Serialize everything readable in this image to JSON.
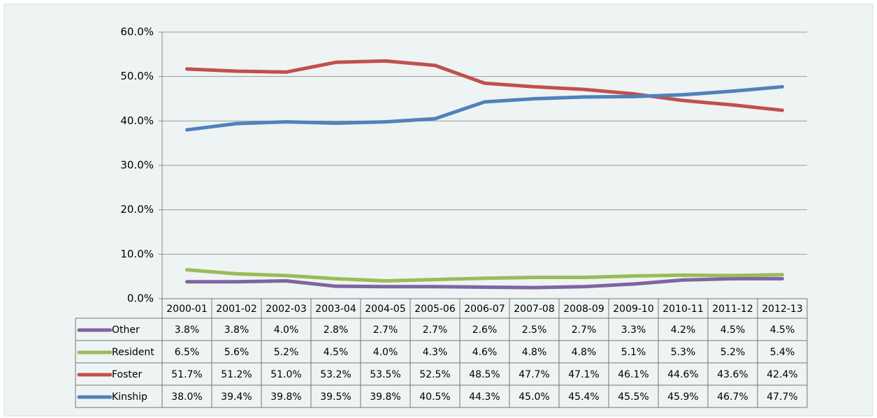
{
  "chart_data": {
    "type": "line",
    "categories": [
      "2000-01",
      "2001-02",
      "2002-03",
      "2003-04",
      "2004-05",
      "2005-06",
      "2006-07",
      "2007-08",
      "2008-09",
      "2009-10",
      "2010-11",
      "2011-12",
      "2012-13"
    ],
    "series": [
      {
        "name": "Other",
        "color": "#8064a2",
        "values": [
          3.8,
          3.8,
          4.0,
          2.8,
          2.7,
          2.7,
          2.6,
          2.5,
          2.7,
          3.3,
          4.2,
          4.5,
          4.5
        ],
        "value_labels": [
          "3.8%",
          "3.8%",
          "4.0%",
          "2.8%",
          "2.7%",
          "2.7%",
          "2.6%",
          "2.5%",
          "2.7%",
          "3.3%",
          "4.2%",
          "4.5%",
          "4.5%"
        ]
      },
      {
        "name": "Resident",
        "color": "#9bbb59",
        "values": [
          6.5,
          5.6,
          5.2,
          4.5,
          4.0,
          4.3,
          4.6,
          4.8,
          4.8,
          5.1,
          5.3,
          5.2,
          5.4
        ],
        "value_labels": [
          "6.5%",
          "5.6%",
          "5.2%",
          "4.5%",
          "4.0%",
          "4.3%",
          "4.6%",
          "4.8%",
          "4.8%",
          "5.1%",
          "5.3%",
          "5.2%",
          "5.4%"
        ]
      },
      {
        "name": "Foster",
        "color": "#c0504d",
        "values": [
          51.7,
          51.2,
          51.0,
          53.2,
          53.5,
          52.5,
          48.5,
          47.7,
          47.1,
          46.1,
          44.6,
          43.6,
          42.4
        ],
        "value_labels": [
          "51.7%",
          "51.2%",
          "51.0%",
          "53.2%",
          "53.5%",
          "52.5%",
          "48.5%",
          "47.7%",
          "47.1%",
          "46.1%",
          "44.6%",
          "43.6%",
          "42.4%"
        ]
      },
      {
        "name": "Kinship",
        "color": "#4f81bd",
        "values": [
          38.0,
          39.4,
          39.8,
          39.5,
          39.8,
          40.5,
          44.3,
          45.0,
          45.4,
          45.5,
          45.9,
          46.7,
          47.7
        ],
        "value_labels": [
          "38.0%",
          "39.4%",
          "39.8%",
          "39.5%",
          "39.8%",
          "40.5%",
          "44.3%",
          "45.0%",
          "45.4%",
          "45.5%",
          "45.9%",
          "46.7%",
          "47.7%"
        ]
      }
    ],
    "ylim": [
      0,
      60
    ],
    "yticks": [
      {
        "value": 0,
        "label": "0.0%"
      },
      {
        "value": 10,
        "label": "10.0%"
      },
      {
        "value": 20,
        "label": "20.0%"
      },
      {
        "value": 30,
        "label": "30.0%"
      },
      {
        "value": 40,
        "label": "40.0%"
      },
      {
        "value": 50,
        "label": "50.0%"
      },
      {
        "value": 60,
        "label": "60.0%"
      }
    ],
    "grid": true,
    "legend": "table"
  }
}
